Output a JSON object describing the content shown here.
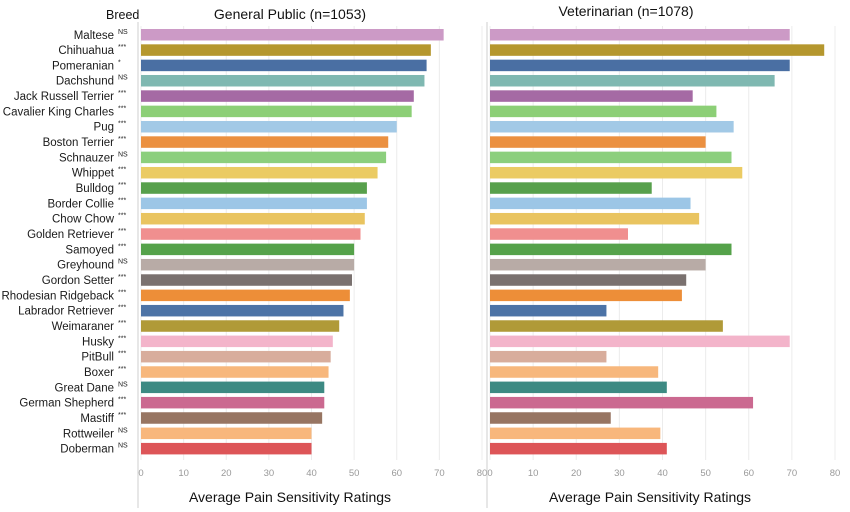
{
  "chart_data": {
    "type": "bar",
    "orientation": "horizontal",
    "category_header": "Breed",
    "categories": [
      "Maltese",
      "Chihuahua",
      "Pomeranian",
      "Dachshund",
      "Jack Russell Terrier",
      "Cavalier King Charles",
      "Pug",
      "Boston Terrier",
      "Schnauzer",
      "Whippet",
      "Bulldog",
      "Border Collie",
      "Chow Chow",
      "Golden Retriever",
      "Samoyed",
      "Greyhound",
      "Gordon Setter",
      "Rhodesian Ridgeback",
      "Labrador Retriever",
      "Weimaraner",
      "Husky",
      "PitBull",
      "Boxer",
      "Great Dane",
      "German Shepherd",
      "Mastiff",
      "Rottweiler",
      "Doberman"
    ],
    "significance": [
      "NS",
      "***",
      "*",
      "NS",
      "***",
      "***",
      "***",
      "***",
      "NS",
      "***",
      "***",
      "***",
      "***",
      "***",
      "***",
      "NS",
      "***",
      "***",
      "***",
      "***",
      "***",
      "***",
      "***",
      "NS",
      "***",
      "***",
      "NS",
      "NS"
    ],
    "colors": [
      "#cc9ac6",
      "#b5972e",
      "#4a6fa3",
      "#7fb8b1",
      "#a56aa4",
      "#8ccf76",
      "#a2c9e6",
      "#eb9040",
      "#8ccf7d",
      "#ebcb63",
      "#57a04c",
      "#9cc6e6",
      "#e9c460",
      "#f08f8f",
      "#55a24a",
      "#b8aba6",
      "#7a716f",
      "#ed8e38",
      "#4c73a6",
      "#b09a38",
      "#f3b4ca",
      "#d8ad9c",
      "#f7b77c",
      "#3d8a83",
      "#cb6990",
      "#977562",
      "#f8b77c",
      "#dd5558"
    ],
    "series": [
      {
        "name": "General Public (n=1053)",
        "values": [
          71,
          68,
          67,
          66.5,
          64,
          63.5,
          60,
          58,
          57.5,
          55.5,
          53,
          53,
          52.5,
          51.5,
          50,
          50,
          49.5,
          49,
          47.5,
          46.5,
          45,
          44.5,
          44,
          43,
          43,
          42.5,
          40,
          40
        ]
      },
      {
        "name": "Veterinarian (n=1078)",
        "values": [
          69.5,
          77.5,
          69.5,
          66,
          47,
          52.5,
          56.5,
          50,
          56,
          58.5,
          37.5,
          46.5,
          48.5,
          32,
          56,
          50,
          45.5,
          44.5,
          27,
          54,
          69.5,
          27,
          39,
          41,
          61,
          28,
          39.5,
          41
        ]
      }
    ],
    "xlabel": "Average Pain Sensitivity Ratings",
    "xlim_left": [
      0,
      80
    ],
    "xlim_right": [
      0,
      80
    ],
    "xticks": [
      0,
      10,
      20,
      30,
      40,
      50,
      60,
      70,
      80
    ],
    "grid": true
  }
}
